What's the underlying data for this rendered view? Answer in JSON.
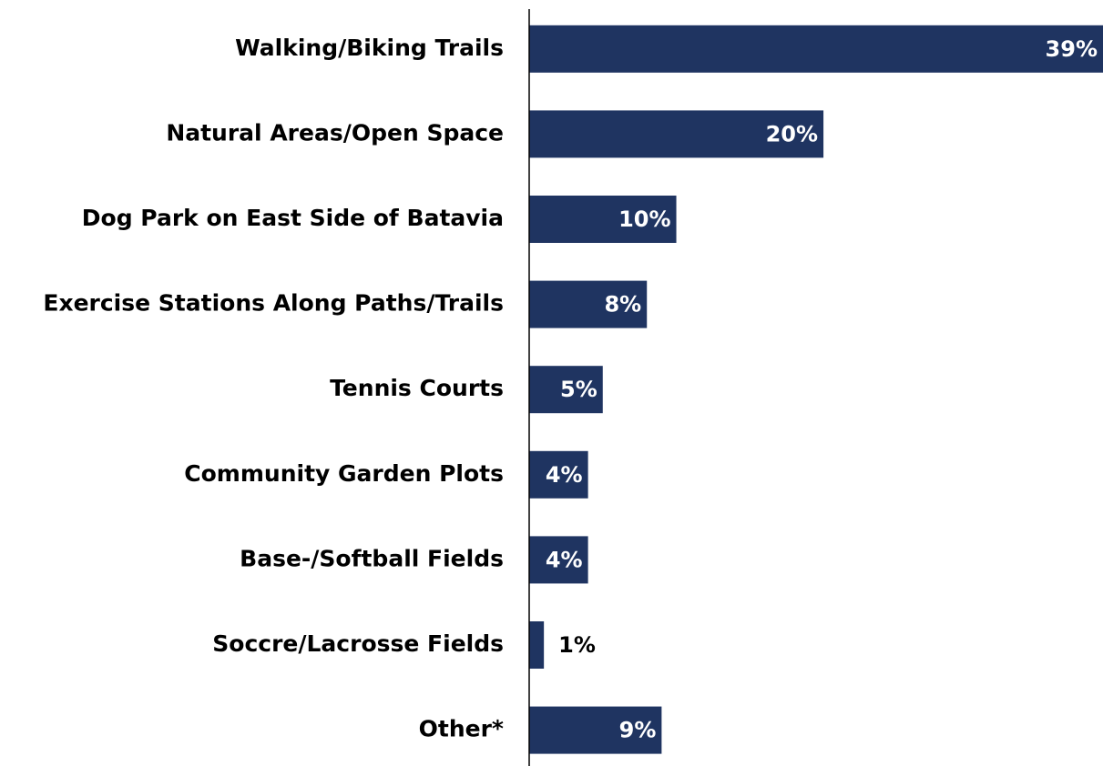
{
  "chart_data": {
    "type": "hbar",
    "categories": [
      "Walking/Biking Trails",
      "Natural Areas/Open Space",
      "Dog Park on East Side of Batavia",
      "Exercise Stations Along Paths/Trails",
      "Tennis Courts",
      "Community Garden Plots",
      "Base-/Softball Fields",
      "Soccre/Lacrosse Fields",
      "Other*"
    ],
    "values": [
      39,
      20,
      10,
      8,
      5,
      4,
      4,
      1,
      9
    ],
    "value_labels": [
      "39%",
      "20%",
      "10%",
      "8%",
      "5%",
      "4%",
      "4%",
      "1%",
      "9%"
    ],
    "color": "#1f3461"
  }
}
